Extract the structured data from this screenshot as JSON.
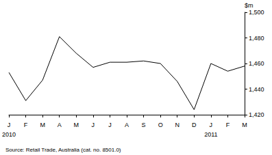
{
  "chart_data": {
    "type": "line",
    "y_label": "$m",
    "annotations": [
      "Source: Retail Trade, Australia (cat. no. 8501.0)"
    ],
    "categories": [
      "J\n2010",
      "F",
      "M",
      "A",
      "M",
      "J",
      "J",
      "A",
      "S",
      "O",
      "N",
      "D",
      "J\n2011",
      "F",
      "M"
    ],
    "values": [
      1453,
      1431,
      1447,
      1481,
      1468,
      1457,
      1461,
      1461,
      1462,
      1460,
      1446,
      1424,
      1460,
      1454,
      1458
    ],
    "color": "#000000",
    "ylim": [
      1420,
      1500
    ],
    "yticks": [
      1420,
      1440,
      1460,
      1480,
      1500
    ],
    "grid": false
  }
}
